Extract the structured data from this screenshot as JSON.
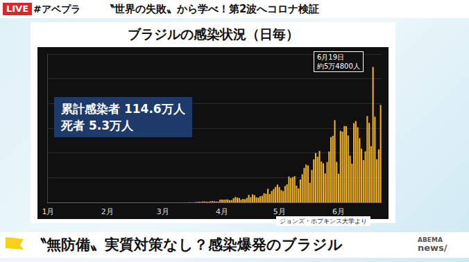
{
  "screen": {
    "live": "LIVE",
    "hashtag": "#アベプラ",
    "headline": "〝世界の失敗〟から学べ！第2波へコロナ検証",
    "caption": "〝無防備〟実質対策なし？感染爆発のブラジル",
    "logo": [
      "ABEMA",
      "news/"
    ]
  },
  "chart_data": {
    "type": "bar",
    "title": "ブラジルの感染状況（日毎）",
    "annotation": [
      "6月19日",
      "約5万4800人"
    ],
    "stats": [
      "累計感染者 114.6万人",
      "死者 5.3万人"
    ],
    "source": "ジョンズ・ホプキンス大学より",
    "color": "#f2b21b",
    "categories": [
      "1月",
      null,
      null,
      null,
      null,
      null,
      null,
      null,
      null,
      null,
      null,
      null,
      null,
      null,
      null,
      null,
      null,
      null,
      null,
      null,
      null,
      null,
      null,
      null,
      null,
      null,
      null,
      null,
      null,
      null,
      null,
      "2月",
      null,
      null,
      null,
      null,
      null,
      null,
      null,
      null,
      null,
      null,
      null,
      null,
      null,
      null,
      null,
      null,
      null,
      null,
      null,
      null,
      null,
      null,
      null,
      null,
      null,
      null,
      null,
      null,
      "3月",
      null,
      null,
      null,
      null,
      null,
      null,
      null,
      null,
      null,
      null,
      null,
      null,
      null,
      null,
      null,
      null,
      null,
      null,
      null,
      null,
      null,
      null,
      null,
      null,
      null,
      null,
      null,
      null,
      null,
      null,
      "4月",
      null,
      null,
      null,
      null,
      null,
      null,
      null,
      null,
      null,
      null,
      null,
      null,
      null,
      null,
      null,
      null,
      null,
      null,
      null,
      null,
      null,
      null,
      null,
      null,
      null,
      null,
      null,
      null,
      null,
      "5月",
      null,
      null,
      null,
      null,
      null,
      null,
      null,
      null,
      null,
      null,
      null,
      null,
      null,
      null,
      null,
      null,
      null,
      null,
      null,
      null,
      null,
      null,
      null,
      null,
      null,
      null,
      null,
      null,
      null,
      null,
      "6月",
      null,
      null,
      null,
      null,
      null,
      null,
      null,
      null,
      null,
      null,
      null,
      null,
      null,
      null,
      null,
      null,
      null,
      null,
      null,
      null,
      null,
      null
    ],
    "values": [
      0,
      0,
      0,
      0,
      0,
      0,
      0,
      0,
      0,
      0,
      0,
      0,
      0,
      0,
      0,
      0,
      0,
      0,
      0,
      0,
      0,
      0,
      0,
      0,
      0,
      0,
      0,
      0,
      0,
      0,
      0,
      0,
      0,
      0,
      0,
      0,
      0,
      0,
      0,
      0,
      0,
      0,
      0,
      0,
      0,
      0,
      0,
      0,
      0,
      0,
      0,
      0,
      0,
      0,
      0,
      0,
      1,
      0,
      0,
      1,
      1,
      0,
      0,
      0,
      5,
      5,
      6,
      6,
      0,
      5,
      9,
      18,
      25,
      21,
      79,
      34,
      57,
      137,
      193,
      283,
      224,
      418,
      345,
      310,
      232,
      482,
      502,
      487,
      352,
      323,
      1138,
      1119,
      1074,
      1146,
      1222,
      852,
      926,
      1661,
      2210,
      1930,
      1781,
      1089,
      1442,
      1261,
      1832,
      3058,
      2105,
      3257,
      2917,
      2055,
      1927,
      2498,
      2678,
      3735,
      3503,
      5514,
      3379,
      4613,
      5385,
      6276,
      7218,
      6209,
      4970,
      4588,
      6633,
      7288,
      10503,
      9888,
      10222,
      10611,
      6760,
      5632,
      9258,
      11385,
      13944,
      15305,
      14919,
      7938,
      13140,
      17408,
      19951,
      18508,
      20803,
      16508,
      15813,
      11687,
      16324,
      20599,
      26417,
      26928,
      33274,
      16409,
      11598,
      28936,
      28633,
      30925,
      30830,
      27075,
      18912,
      15654,
      32091,
      32913,
      30412,
      25982,
      21704,
      17110,
      20647,
      34918,
      32188,
      22765,
      54771,
      34666,
      17459,
      21432,
      39436
    ],
    "ylim": [
      0,
      60000
    ],
    "yticks": [
      0,
      10000,
      20000,
      30000,
      40000,
      50000,
      60000
    ],
    "grid": true,
    "tick_labels": "x"
  }
}
